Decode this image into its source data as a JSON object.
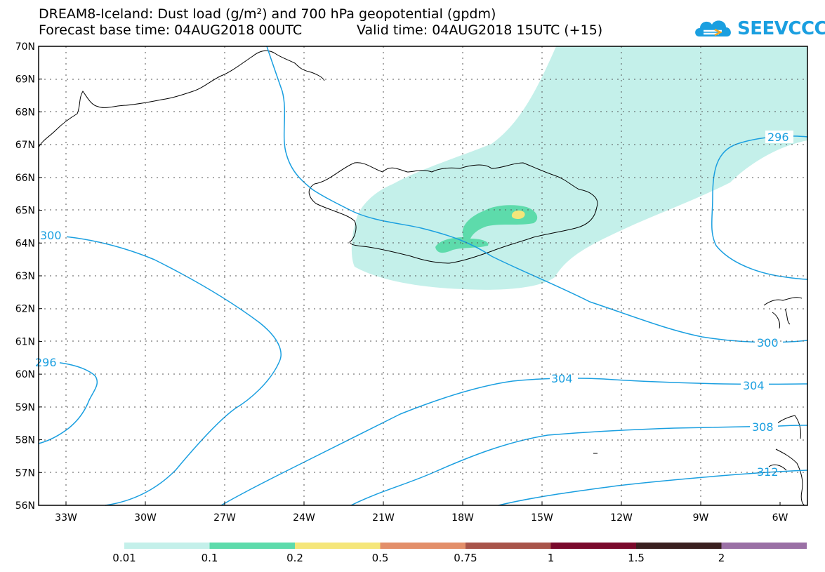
{
  "title": {
    "line1": "DREAM8-Iceland: Dust load (g/m²) and 700 hPa geopotential (gpdm)",
    "line2a": "Forecast base time: 04AUG2018 00UTC",
    "line2b": "Valid time: 04AUG2018 15UTC (+15)"
  },
  "logo": {
    "text": "SEEVCCC"
  },
  "axes": {
    "lat_labels": [
      "70N",
      "69N",
      "68N",
      "67N",
      "66N",
      "65N",
      "64N",
      "63N",
      "62N",
      "61N",
      "60N",
      "59N",
      "58N",
      "57N",
      "56N"
    ],
    "lon_labels": [
      "33W",
      "30W",
      "27W",
      "24W",
      "21W",
      "18W",
      "15W",
      "12W",
      "9W",
      "6W"
    ]
  },
  "contours": {
    "labels": [
      "296",
      "300",
      "300",
      "296",
      "304",
      "304",
      "308",
      "312"
    ]
  },
  "colorbar": {
    "colors": [
      "#c4f0ea",
      "#5ddbab",
      "#f5e67a",
      "#e38f6a",
      "#a8544a",
      "#7a0a2c",
      "#3a2020",
      "#9a70a5"
    ],
    "labels": [
      "0.01",
      "0.1",
      "0.2",
      "0.5",
      "0.75",
      "1",
      "1.5",
      "2"
    ]
  }
}
